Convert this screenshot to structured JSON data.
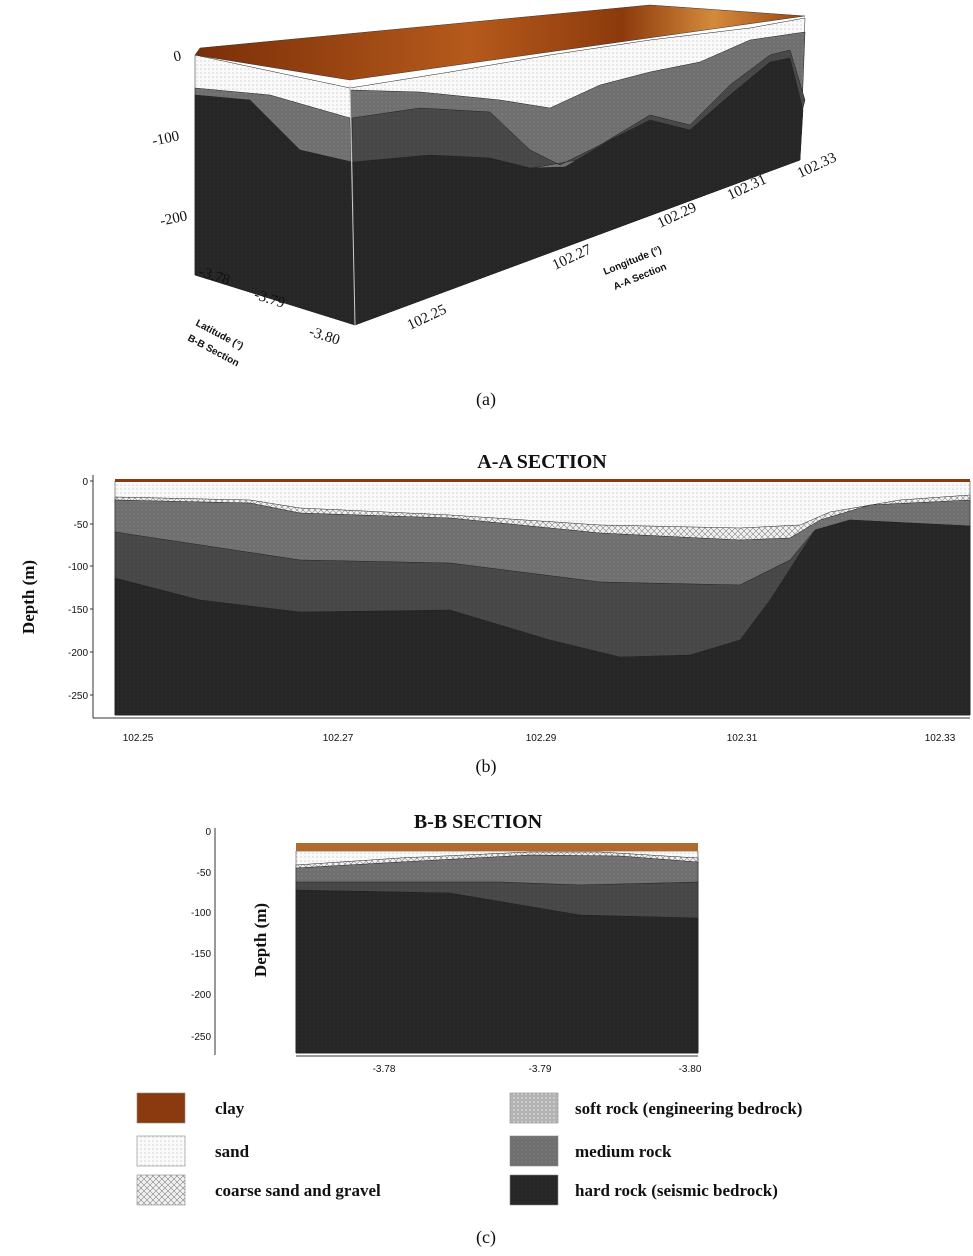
{
  "panel_a": {
    "z_ticks": [
      "0",
      "-100",
      "-200"
    ],
    "lat_ticks": [
      "-3.78",
      "-3.79",
      "-3.80"
    ],
    "lat_label": [
      "Latitude (°)",
      "B-B Section"
    ],
    "lon_ticks": [
      "102.25",
      "102.27",
      "102.29",
      "102.31",
      "102.33"
    ],
    "lon_label": [
      "Longitude (°)",
      "A-A Section"
    ],
    "caption": "(a)"
  },
  "panel_b": {
    "title": "A-A SECTION",
    "y_label": "Depth (m)",
    "y_ticks": [
      "0",
      "-50",
      "-100",
      "-150",
      "-200",
      "-250"
    ],
    "x_ticks": [
      "102.25",
      "102.27",
      "102.29",
      "102.31",
      "102.33"
    ],
    "caption": "(b)"
  },
  "panel_c": {
    "title": "B-B SECTION",
    "y_label": "Depth (m)",
    "y_ticks": [
      "0",
      "-50",
      "-100",
      "-150",
      "-200",
      "-250"
    ],
    "x_ticks": [
      "-3.78",
      "-3.79",
      "-3.80"
    ],
    "caption": "(c)"
  },
  "legend": [
    "clay",
    "sand",
    "coarse sand and gravel",
    "soft rock (engineering bedrock)",
    "medium rock",
    "hard rock (seismic bedrock)"
  ]
}
